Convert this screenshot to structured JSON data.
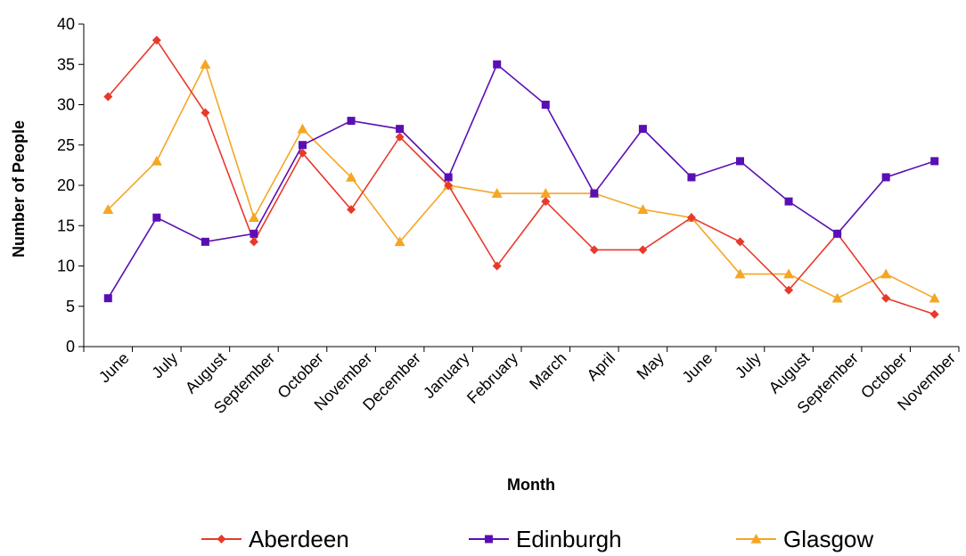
{
  "chart_data": {
    "type": "line",
    "title": "",
    "xlabel": "Month",
    "ylabel": "Number of People",
    "ylim": [
      0,
      40
    ],
    "yticks": [
      0,
      5,
      10,
      15,
      20,
      25,
      30,
      35,
      40
    ],
    "grid": false,
    "legend_position": "bottom",
    "categories": [
      "June",
      "July",
      "August",
      "September",
      "October",
      "November",
      "December",
      "January",
      "February",
      "March",
      "April",
      "May",
      "June",
      "July",
      "August",
      "September",
      "October",
      "November"
    ],
    "series": [
      {
        "name": "Aberdeen",
        "color": "#e8392b",
        "marker": "diamond",
        "values": [
          31,
          38,
          29,
          13,
          24,
          17,
          26,
          20,
          10,
          18,
          12,
          12,
          16,
          13,
          7,
          14,
          6,
          4
        ]
      },
      {
        "name": "Edinburgh",
        "color": "#5a0fb4",
        "marker": "square",
        "values": [
          6,
          16,
          13,
          14,
          25,
          28,
          27,
          21,
          35,
          30,
          19,
          27,
          21,
          23,
          18,
          14,
          21,
          23
        ]
      },
      {
        "name": "Glasgow",
        "color": "#f5a623",
        "marker": "triangle",
        "values": [
          17,
          23,
          35,
          16,
          27,
          21,
          13,
          20,
          19,
          19,
          19,
          17,
          16,
          9,
          9,
          6,
          9,
          6
        ]
      }
    ]
  }
}
